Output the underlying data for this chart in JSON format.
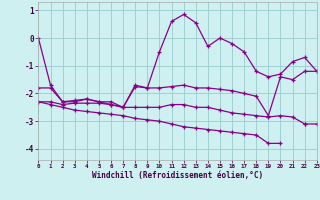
{
  "xlabel": "Windchill (Refroidissement éolien,°C)",
  "bg_color": "#cff0f0",
  "line_color": "#880088",
  "grid_color": "#99cccc",
  "hours": [
    0,
    1,
    2,
    3,
    4,
    5,
    6,
    7,
    8,
    9,
    10,
    11,
    12,
    13,
    14,
    15,
    16,
    17,
    18,
    19,
    20,
    21,
    22,
    23
  ],
  "line1": [
    0.0,
    -1.7,
    -2.3,
    -2.3,
    -2.2,
    -2.3,
    -2.4,
    -2.5,
    -1.7,
    -1.8,
    -0.5,
    0.6,
    0.85,
    0.55,
    -0.3,
    0.0,
    -0.2,
    -0.5,
    -1.2,
    -1.4,
    -1.3,
    -0.85,
    -0.7,
    -1.2
  ],
  "line2": [
    -1.8,
    -1.8,
    -2.3,
    -2.25,
    -2.2,
    -2.3,
    -2.3,
    -2.5,
    -1.75,
    -1.8,
    -1.8,
    -1.75,
    -1.7,
    -1.8,
    -1.8,
    -1.85,
    -1.9,
    -2.0,
    -2.1,
    -2.8,
    -1.4,
    -1.5,
    -1.2,
    -1.2
  ],
  "line3": [
    -2.3,
    -2.3,
    -2.4,
    -2.35,
    -2.35,
    -2.35,
    -2.4,
    -2.5,
    -2.5,
    -2.5,
    -2.5,
    -2.4,
    -2.4,
    -2.5,
    -2.5,
    -2.6,
    -2.7,
    -2.75,
    -2.8,
    -2.85,
    -2.8,
    -2.85,
    -3.1,
    -3.1
  ],
  "line4": [
    -2.3,
    -2.4,
    -2.5,
    -2.6,
    -2.65,
    -2.7,
    -2.75,
    -2.8,
    -2.9,
    -2.95,
    -3.0,
    -3.1,
    -3.2,
    -3.25,
    -3.3,
    -3.35,
    -3.4,
    -3.45,
    -3.5,
    -3.8,
    -3.8,
    null,
    -3.1,
    null
  ],
  "xlim": [
    0,
    23
  ],
  "ylim": [
    -4.4,
    1.3
  ],
  "yticks": [
    -4,
    -3,
    -2,
    -1,
    0,
    1
  ],
  "xticks": [
    0,
    1,
    2,
    3,
    4,
    5,
    6,
    7,
    8,
    9,
    10,
    11,
    12,
    13,
    14,
    15,
    16,
    17,
    18,
    19,
    20,
    21,
    22,
    23
  ]
}
